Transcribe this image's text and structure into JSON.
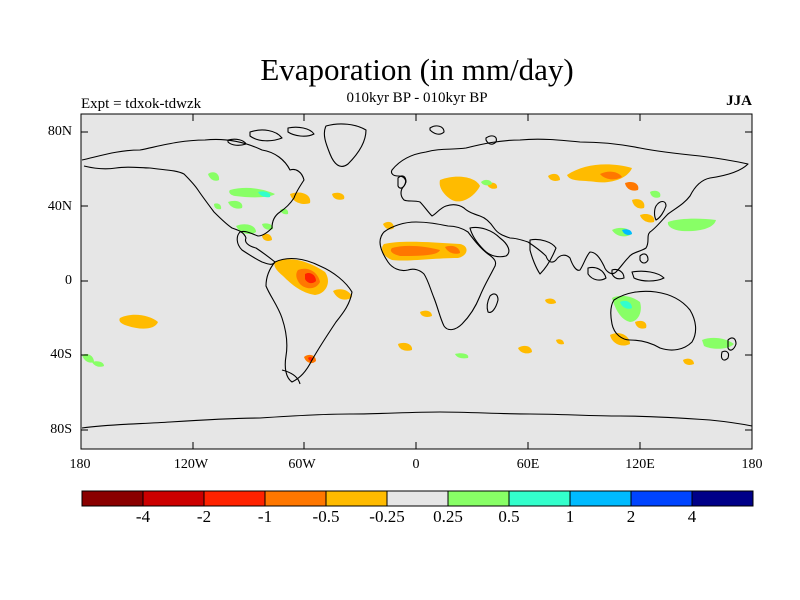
{
  "title": "Evaporation (in mm/day)",
  "subtitle": "010kyr BP - 010kyr BP",
  "experiment": "Expt = tdxok-tdwzk",
  "season": "JJA",
  "lat_labels": [
    "80N",
    "40N",
    "0",
    "40S",
    "80S"
  ],
  "lon_labels": [
    "180",
    "120W",
    "60W",
    "0",
    "60E",
    "120E",
    "180"
  ],
  "colorbar": {
    "colors": [
      "#8a0000",
      "#cc0000",
      "#ff2200",
      "#ff7700",
      "#ffbb00",
      "#e6e6e6",
      "#88ff66",
      "#33ffcc",
      "#00bbff",
      "#0044ff",
      "#000088"
    ],
    "labels": [
      "-4",
      "-2",
      "-1",
      "-0.5",
      "-0.25",
      "0.25",
      "0.5",
      "1",
      "2",
      "4"
    ]
  },
  "colors": {
    "ocean_land_bg": "#e6e6e6",
    "coast": "#000000"
  }
}
